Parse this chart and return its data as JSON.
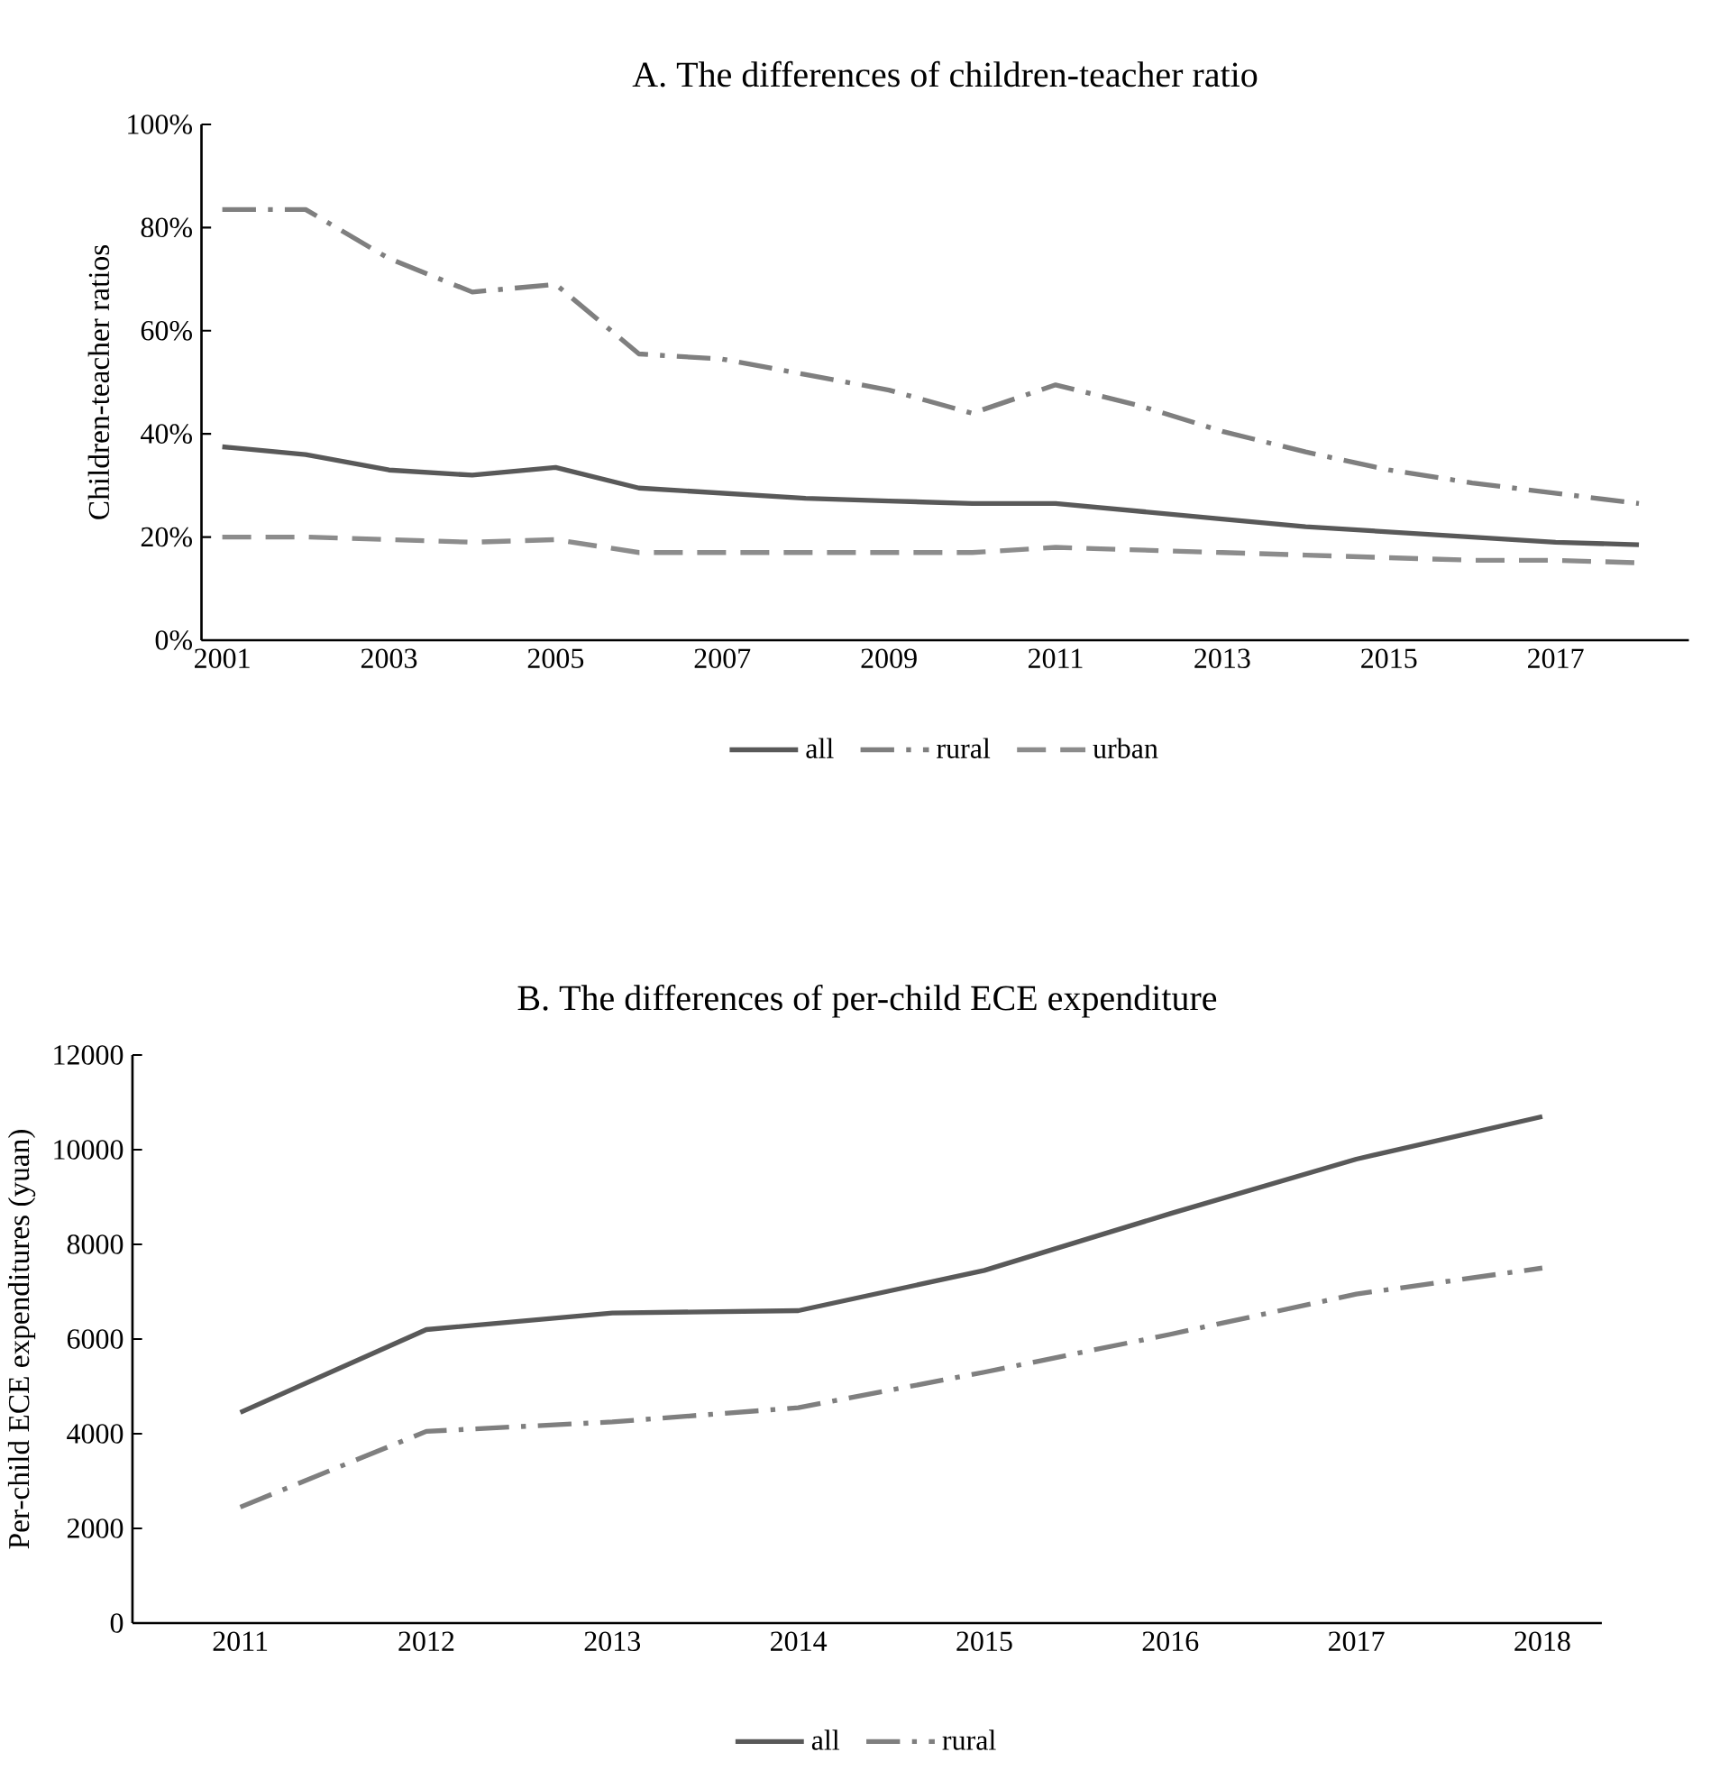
{
  "chart_data": [
    {
      "type": "line",
      "title": "A. The differences of children-teacher ratio",
      "ylabel": "Children-teacher ratios",
      "categories": [
        "2001",
        null,
        "2003",
        null,
        "2005",
        null,
        "2007",
        null,
        "2009",
        null,
        "2011",
        null,
        "2013",
        null,
        "2015",
        null,
        "2017",
        null
      ],
      "series": [
        {
          "name": "all",
          "color": "#595959",
          "line_style": "solid",
          "values": [
            37.5,
            36,
            33,
            32,
            33.5,
            29.5,
            28.5,
            27.5,
            27,
            26.5,
            26.5,
            25,
            23.5,
            22,
            21,
            20,
            19,
            18.5
          ]
        },
        {
          "name": "rural",
          "color": "#7f7f7f",
          "line_style": "dashdot",
          "values": [
            83.5,
            83.5,
            74,
            67.5,
            69,
            55.5,
            54.5,
            51.5,
            48.5,
            44,
            49.5,
            45.5,
            40.5,
            36.5,
            33,
            30.5,
            28.5,
            26.5
          ]
        },
        {
          "name": "urban",
          "color": "#8c8c8c",
          "line_style": "dashed",
          "values": [
            20,
            20,
            19.5,
            19,
            19.5,
            17,
            17,
            17,
            17,
            17,
            18,
            17.5,
            17,
            16.5,
            16,
            15.5,
            15.5,
            15
          ]
        }
      ],
      "ylim": [
        0,
        100
      ],
      "yticks": [
        {
          "value": 0,
          "label": "0%"
        },
        {
          "value": 20,
          "label": "20%"
        },
        {
          "value": 40,
          "label": "40%"
        },
        {
          "value": 60,
          "label": "60%"
        },
        {
          "value": 80,
          "label": "80%"
        },
        {
          "value": 100,
          "label": "100%"
        }
      ],
      "grid": false,
      "legend": "bottom"
    },
    {
      "type": "line",
      "title": "B. The differences of per-child ECE expenditure",
      "ylabel": "Per-child ECE expenditures (yuan)",
      "categories": [
        "2011",
        "2012",
        "2013",
        "2014",
        "2015",
        "2016",
        "2017",
        "2018"
      ],
      "series": [
        {
          "name": "all",
          "color": "#595959",
          "line_style": "solid",
          "values": [
            4450,
            6200,
            6550,
            6600,
            7450,
            8650,
            9800,
            10700
          ]
        },
        {
          "name": "rural",
          "color": "#7f7f7f",
          "line_style": "dashdot",
          "values": [
            2450,
            4050,
            4250,
            4550,
            5300,
            6100,
            6950,
            7500
          ]
        }
      ],
      "ylim": [
        0,
        12000
      ],
      "yticks": [
        0,
        2000,
        4000,
        6000,
        8000,
        10000,
        12000
      ],
      "grid": false,
      "legend": "bottom"
    }
  ]
}
